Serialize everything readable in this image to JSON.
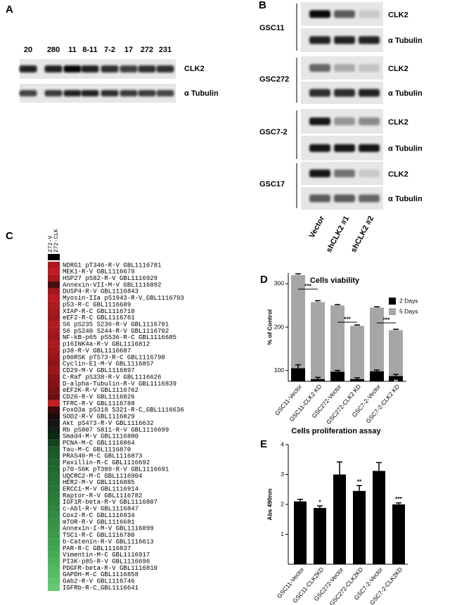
{
  "panel_a": {
    "label": "A",
    "lanes": [
      "20",
      "280",
      "11",
      "8-11",
      "7-2",
      "17",
      "272",
      "231"
    ],
    "rows": [
      "CLK2",
      "α Tubulin"
    ]
  },
  "panel_b": {
    "label": "B",
    "groups": [
      {
        "name": "GSC11",
        "rows": [
          "CLK2",
          "α Tubulin"
        ]
      },
      {
        "name": "GSC272",
        "rows": [
          "CLK2",
          "α Tubulin"
        ]
      },
      {
        "name": "GSC7-2",
        "rows": [
          "CLK2",
          "α Tubulin"
        ]
      },
      {
        "name": "GSC17",
        "rows": [
          "CLK2",
          "α Tubulin"
        ]
      }
    ],
    "lanes": [
      "Vector",
      "shCLK2 #1",
      "shCLK2 #2"
    ]
  },
  "panel_c": {
    "label": "C",
    "columns": [
      "272-V",
      "272-CLK"
    ],
    "rows": [
      {
        "label": "NDRG1 pT346-R-V GBL1116781",
        "color": "#b01a1e"
      },
      {
        "label": "MEK1-R-V GBL1116679",
        "color": "#c21d22"
      },
      {
        "label": "HSP27 pS82-R-V GBL1116929",
        "color": "#a8181c"
      },
      {
        "label": "Annexin-VII-M-V GBL1116892",
        "color": "#4a0c0e"
      },
      {
        "label": "DUSP4-R-V GBL1116843",
        "color": "#a3171b"
      },
      {
        "label": "Myosin-IIa pS1943-R-V_GBL1116793",
        "color": "#b81b20"
      },
      {
        "label": "p53-R-C GBL1116689",
        "color": "#ad191d"
      },
      {
        "label": "XIAP-R-C GBL1116710",
        "color": "#a5181c"
      },
      {
        "label": "eEF2-R-C GBL1116761",
        "color": "#9c161a"
      },
      {
        "label": "S6 pS235 S236-R-V GBL1116701",
        "color": "#b11a1f"
      },
      {
        "label": "S6 pS240 S244-R-V GBL1116702",
        "color": "#a9181c"
      },
      {
        "label": "NF-kB-p65 pS536-R-C GBL1116685",
        "color": "#9e171b"
      },
      {
        "label": "p16INK4a-R-V GBL1116812",
        "color": "#ae191d"
      },
      {
        "label": "p38-R-V GBL1116687",
        "color": "#a3171b"
      },
      {
        "label": "p90RSK pT573-R-C GBL1116798",
        "color": "#98161a"
      },
      {
        "label": "Cyclin-E1-M-V GBL1116857",
        "color": "#8f1418"
      },
      {
        "label": "CD29-M-V GBL1116897",
        "color": "#9a161a"
      },
      {
        "label": "C-Raf pS338-R-V GBL1116626",
        "color": "#8a1317"
      },
      {
        "label": "D-alpha-Tubulin-R-V GBL1116839",
        "color": "#861216"
      },
      {
        "label": "eEF2K-R-V GBL1116762",
        "color": "#7a1014"
      },
      {
        "label": "CD26-R-V GBL1116826",
        "color": "#6e0e12"
      },
      {
        "label": "TFRC-R-V GBL1116788",
        "color": "#c61e23"
      },
      {
        "label": "FoxO3a pS318 S321-R-C_GBL1116636",
        "color": "#3a0a0c"
      },
      {
        "label": "SOD2-R-V GBL1116829",
        "color": "#1e0a0a"
      },
      {
        "label": "Akt pS473-R-V GBL1116632",
        "color": "#141414"
      },
      {
        "label": "Rb pS807 S811-R-V GBL1116699",
        "color": "#0f1f12"
      },
      {
        "label": "Smad4-M-V GBL1116880",
        "color": "#0e2a15"
      },
      {
        "label": "PCNA-M-C GBL1116864",
        "color": "#15431f"
      },
      {
        "label": "Tau-M-C GBL1116870",
        "color": "#1b5527"
      },
      {
        "label": "PRAS40-M-C GBL1116873",
        "color": "#1d5a29"
      },
      {
        "label": "Paxillin-R-C GBL1116692",
        "color": "#20632d"
      },
      {
        "label": "p70-S6K pT389-R-V GBL1116691",
        "color": "#216730"
      },
      {
        "label": "UQCRC2-M-C GBL1116904",
        "color": "#236c32"
      },
      {
        "label": "HER2-M-V GBL1116885",
        "color": "#257134"
      },
      {
        "label": "ERCC1-M-V GBL1116914",
        "color": "#277536"
      },
      {
        "label": "Raptor-R-V GBL1116782",
        "color": "#297a38"
      },
      {
        "label": "IGF1R-beta-R-V GBL1116807",
        "color": "#2c803b"
      },
      {
        "label": "c-Abl-R-V GBL1116847",
        "color": "#2f863e"
      },
      {
        "label": "Cox2-R-C GBL1116934",
        "color": "#318b41"
      },
      {
        "label": "mTOR-R-V GBL1116681",
        "color": "#349044"
      },
      {
        "label": "Annexin-I-M-V GBL1116899",
        "color": "#379647"
      },
      {
        "label": "TSC1-R-C GBL1116780",
        "color": "#3a9b4a"
      },
      {
        "label": "b-Catenin-R-V GBL1116613",
        "color": "#3da04d"
      },
      {
        "label": "PAR-R-C GBL1116837",
        "color": "#41a651"
      },
      {
        "label": "Vimentin-M-C GBL1116917",
        "color": "#45ac55"
      },
      {
        "label": "PI3K-p85-R-V GBL1116696",
        "color": "#4ab25a"
      },
      {
        "label": "PDGFR-beta-R-V GBL1116810",
        "color": "#50b85f"
      },
      {
        "label": "GAPDH-M-C GBL1116858",
        "color": "#56be65"
      },
      {
        "label": "Gab2-R-V GBL1116746",
        "color": "#5cc46b"
      },
      {
        "label": "IGFRb-R-C_GBL1116641",
        "color": "#66cc73"
      }
    ]
  },
  "chart_data": [
    {
      "panel_label": "D",
      "type": "bar",
      "title": "Cells viability",
      "y_label": "% of Control",
      "categories": [
        "GSC11-Vector",
        "GSC11-CLK2 KD",
        "GSC272-Vector",
        "GSC272-CLK2 KD",
        "GSC7-2-Vector",
        "GSC7-2-CLK2 KD"
      ],
      "series": [
        {
          "name": "2 Days",
          "color": "#000000",
          "values": [
            105,
            80,
            97,
            80,
            98,
            87
          ],
          "errors": [
            8,
            4,
            3,
            3,
            3,
            4
          ]
        },
        {
          "name": "5 Days",
          "color": "#a6a6a6",
          "values": [
            320,
            258,
            250,
            203,
            245,
            193
          ],
          "errors": [
            3,
            3,
            2,
            2,
            2,
            2
          ]
        }
      ],
      "ylim": [
        75,
        325
      ],
      "yticks": [
        100,
        200,
        300
      ],
      "pair_annotations": [
        "***",
        "***",
        "***"
      ],
      "bar_annotations": [
        "**",
        "***",
        "**"
      ]
    },
    {
      "panel_label": "E",
      "type": "bar",
      "title": "Cells proliferation assay",
      "y_label": "Abs 490nm",
      "categories": [
        "GSC11-Vector",
        "GSC11-CLK2KD",
        "GSC272-Vector",
        "GSC272-CLK2KD",
        "GSC7-2-Vector",
        "GSC7-2-CLK2KD"
      ],
      "series": [
        {
          "color": "#000000",
          "values": [
            2.1,
            1.88,
            3.0,
            2.45,
            3.12,
            2.0
          ],
          "errors": [
            0.07,
            0.07,
            0.42,
            0.18,
            0.28,
            0.05
          ]
        }
      ],
      "ylim": [
        0,
        4
      ],
      "yticks": [
        1,
        2,
        3,
        4
      ],
      "bar_annotations": [
        "*",
        "**",
        "***"
      ]
    }
  ]
}
